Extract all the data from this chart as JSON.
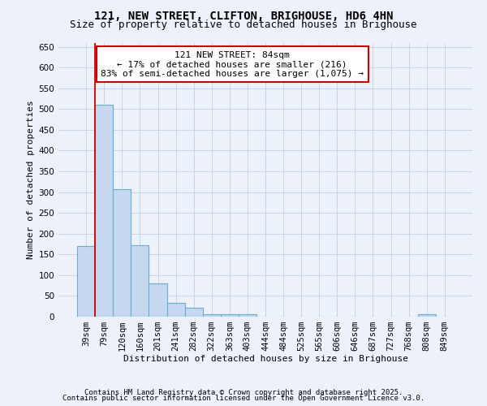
{
  "title_line1": "121, NEW STREET, CLIFTON, BRIGHOUSE, HD6 4HN",
  "title_line2": "Size of property relative to detached houses in Brighouse",
  "xlabel": "Distribution of detached houses by size in Brighouse",
  "ylabel": "Number of detached properties",
  "categories": [
    "39sqm",
    "79sqm",
    "120sqm",
    "160sqm",
    "201sqm",
    "241sqm",
    "282sqm",
    "322sqm",
    "363sqm",
    "403sqm",
    "444sqm",
    "484sqm",
    "525sqm",
    "565sqm",
    "606sqm",
    "646sqm",
    "687sqm",
    "727sqm",
    "768sqm",
    "808sqm",
    "849sqm"
  ],
  "values": [
    170,
    510,
    308,
    172,
    80,
    33,
    22,
    5,
    5,
    6,
    0,
    0,
    0,
    0,
    0,
    0,
    0,
    0,
    0,
    5,
    0
  ],
  "bar_color": "#c5d8f0",
  "bar_edge_color": "#6aaad4",
  "vline_x": 0.5,
  "vline_color": "#cc0000",
  "annotation_text_line1": "121 NEW STREET: 84sqm",
  "annotation_text_line2": "← 17% of detached houses are smaller (216)",
  "annotation_text_line3": "83% of semi-detached houses are larger (1,075) →",
  "annotation_box_color": "#cc0000",
  "annotation_bg": "#ffffff",
  "ylim": [
    0,
    660
  ],
  "yticks": [
    0,
    50,
    100,
    150,
    200,
    250,
    300,
    350,
    400,
    450,
    500,
    550,
    600,
    650
  ],
  "grid_color": "#c0cfe0",
  "background_color": "#edf2fa",
  "footer_line1": "Contains HM Land Registry data © Crown copyright and database right 2025.",
  "footer_line2": "Contains public sector information licensed under the Open Government Licence v3.0.",
  "title_fontsize": 10,
  "subtitle_fontsize": 9,
  "axis_label_fontsize": 8,
  "tick_fontsize": 7.5,
  "annotation_fontsize": 8,
  "footer_fontsize": 6.5
}
